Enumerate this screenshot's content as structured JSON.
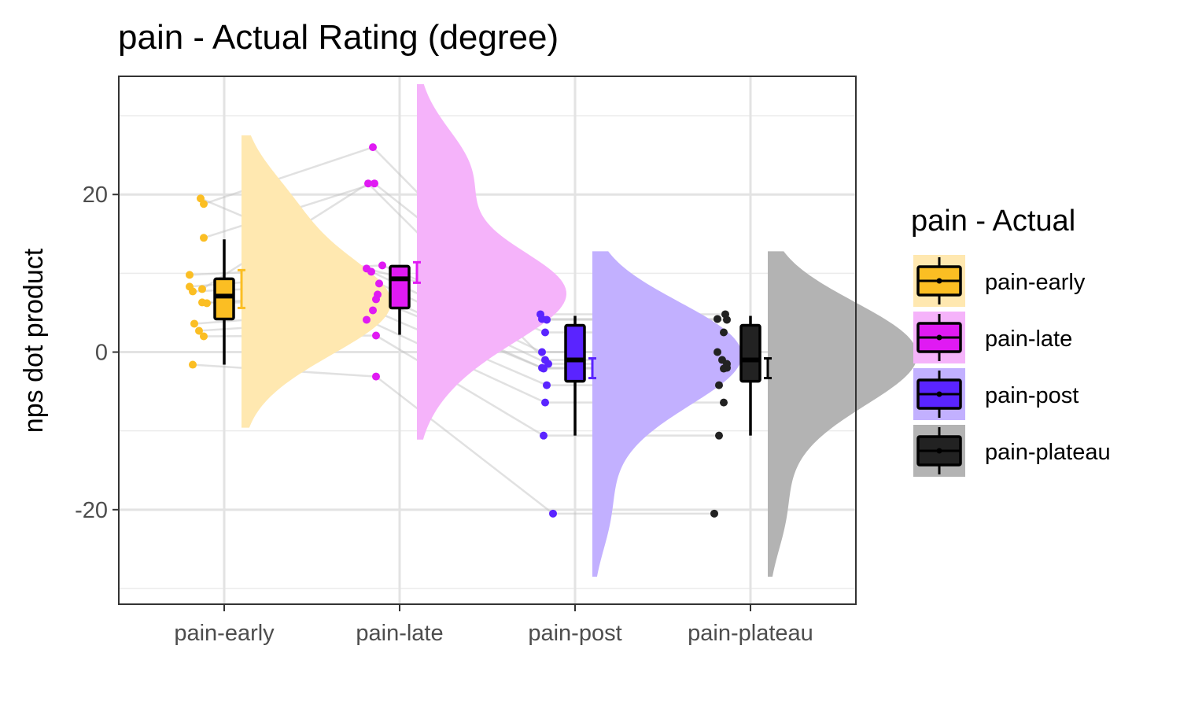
{
  "chart_data": {
    "type": "raincloud",
    "title": "pain  - Actual Rating (degree)",
    "xlabel": "",
    "ylabel": "nps dot product",
    "ylim": [
      -32,
      35
    ],
    "yticks": [
      -20,
      0,
      20
    ],
    "grid": true,
    "legend": {
      "title": "pain  - Actual",
      "position": "right",
      "entries": [
        "pain-early",
        "pain-late",
        "pain-post",
        "pain-plateau"
      ]
    },
    "categories": [
      "pain-early",
      "pain-late",
      "pain-post",
      "pain-plateau"
    ],
    "colors": {
      "pain-early": "#FBBE23",
      "pain-late": "#E01AF3",
      "pain-post": "#5A24FF",
      "pain-plateau": "#222222"
    },
    "series": [
      {
        "name": "pain-early",
        "points": [
          19.5,
          18.8,
          14.5,
          9.8,
          8.3,
          8.0,
          7.7,
          6.3,
          6.2,
          3.6,
          2.7,
          2.0,
          -1.6
        ],
        "box": {
          "min": -1.6,
          "q1": 4.2,
          "median": 7.1,
          "q3": 9.3,
          "max": 14.3
        },
        "mean": 8.0,
        "ci": [
          5.6,
          10.4
        ]
      },
      {
        "name": "pain-late",
        "points": [
          26.0,
          21.4,
          21.4,
          11.0,
          10.6,
          10.2,
          8.7,
          7.3,
          6.7,
          5.3,
          4.1,
          2.1,
          -3.1
        ],
        "box": {
          "min": 2.2,
          "q1": 5.6,
          "median": 9.3,
          "q3": 10.9,
          "max": 10.9
        },
        "mean": 10.0,
        "ci": [
          8.8,
          11.4
        ]
      },
      {
        "name": "pain-post",
        "points": [
          4.8,
          4.2,
          4.1,
          2.5,
          0.0,
          -1.0,
          -1.5,
          -2.0,
          -2.1,
          -4.2,
          -6.4,
          -10.6,
          -20.5
        ],
        "box": {
          "min": -10.6,
          "q1": -3.7,
          "median": -1.0,
          "q3": 3.4,
          "max": 4.6
        },
        "mean": -2.0,
        "ci": [
          -3.3,
          -0.8
        ]
      },
      {
        "name": "pain-plateau",
        "points": [
          4.8,
          4.2,
          4.1,
          2.5,
          0.0,
          -1.0,
          -1.5,
          -2.0,
          -2.1,
          -4.2,
          -6.4,
          -10.6,
          -20.5
        ],
        "box": {
          "min": -10.6,
          "q1": -3.7,
          "median": -1.0,
          "q3": 3.4,
          "max": 4.6
        },
        "mean": -2.0,
        "ci": [
          -3.3,
          -0.8
        ]
      }
    ]
  }
}
